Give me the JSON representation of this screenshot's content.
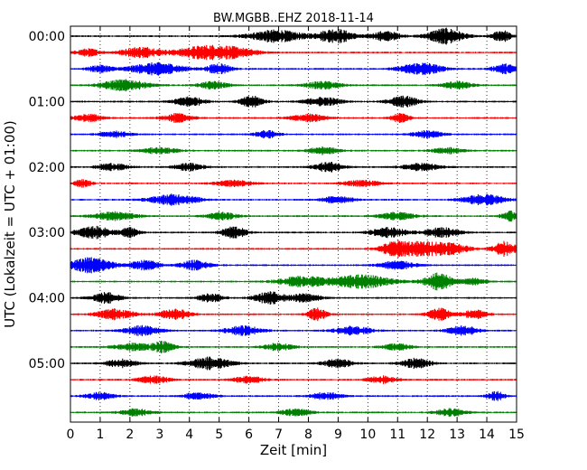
{
  "chart_data": {
    "type": "line",
    "title": "BW.MGBB..EHZ 2018-11-14",
    "xlabel": "Zeit  [min]",
    "ylabel": "UTC (Lokalzeit = UTC + 01:00)",
    "xlim": [
      0,
      15
    ],
    "x_ticks": [
      0,
      1,
      2,
      3,
      4,
      5,
      6,
      7,
      8,
      9,
      10,
      11,
      12,
      13,
      14,
      15
    ],
    "y_tick_labels": [
      "00:00",
      "01:00",
      "02:00",
      "03:00",
      "04:00",
      "05:00"
    ],
    "trace_minutes": 15,
    "grid": "vertical dotted at each minute",
    "color_cycle": [
      "#000000",
      "#ff0000",
      "#0000ff",
      "#008000"
    ],
    "series": [
      {
        "name": "00:00",
        "color": "#000000",
        "bursts": [
          [
            6.9,
            0.9,
            1.0
          ],
          [
            8.9,
            0.6,
            1.2
          ],
          [
            10.6,
            0.5,
            0.8
          ],
          [
            12.6,
            0.6,
            1.3
          ],
          [
            14.5,
            0.3,
            1.0
          ]
        ]
      },
      {
        "name": "00:15",
        "color": "#ff0000",
        "bursts": [
          [
            0.6,
            0.4,
            0.6
          ],
          [
            2.4,
            0.7,
            0.9
          ],
          [
            4.3,
            0.8,
            0.8
          ],
          [
            5.3,
            0.9,
            0.9
          ]
        ]
      },
      {
        "name": "00:30",
        "color": "#0000ff",
        "bursts": [
          [
            1.0,
            0.4,
            0.6
          ],
          [
            2.9,
            0.9,
            1.0
          ],
          [
            5.0,
            0.4,
            0.9
          ],
          [
            11.8,
            0.7,
            1.0
          ],
          [
            14.6,
            0.4,
            0.8
          ]
        ]
      },
      {
        "name": "00:45",
        "color": "#008000",
        "bursts": [
          [
            1.8,
            0.8,
            0.9
          ],
          [
            4.8,
            0.5,
            0.6
          ],
          [
            8.5,
            0.6,
            0.6
          ],
          [
            13.0,
            0.5,
            0.6
          ]
        ]
      },
      {
        "name": "01:00",
        "color": "#000000",
        "bursts": [
          [
            4.0,
            0.5,
            0.8
          ],
          [
            6.1,
            0.4,
            0.9
          ],
          [
            8.5,
            0.6,
            0.7
          ],
          [
            11.2,
            0.5,
            0.9
          ]
        ]
      },
      {
        "name": "01:15",
        "color": "#ff0000",
        "bursts": [
          [
            0.6,
            0.5,
            0.6
          ],
          [
            3.6,
            0.5,
            0.7
          ],
          [
            8.0,
            0.6,
            0.6
          ],
          [
            11.1,
            0.3,
            0.8
          ]
        ]
      },
      {
        "name": "01:30",
        "color": "#0000ff",
        "bursts": [
          [
            1.5,
            0.5,
            0.5
          ],
          [
            6.6,
            0.4,
            0.6
          ],
          [
            12.0,
            0.5,
            0.6
          ]
        ]
      },
      {
        "name": "01:45",
        "color": "#008000",
        "bursts": [
          [
            3.0,
            0.6,
            0.5
          ],
          [
            8.5,
            0.5,
            0.6
          ],
          [
            12.7,
            0.5,
            0.5
          ]
        ]
      },
      {
        "name": "02:00",
        "color": "#000000",
        "bursts": [
          [
            1.4,
            0.5,
            0.6
          ],
          [
            4.0,
            0.5,
            0.6
          ],
          [
            8.7,
            0.5,
            0.8
          ],
          [
            11.8,
            0.6,
            0.6
          ]
        ]
      },
      {
        "name": "02:15",
        "color": "#ff0000",
        "bursts": [
          [
            0.4,
            0.3,
            0.6
          ],
          [
            5.5,
            0.6,
            0.5
          ],
          [
            9.8,
            0.6,
            0.5
          ]
        ]
      },
      {
        "name": "02:30",
        "color": "#0000ff",
        "bursts": [
          [
            3.5,
            0.8,
            0.9
          ],
          [
            9.0,
            0.5,
            0.6
          ],
          [
            13.9,
            0.7,
            0.9
          ]
        ]
      },
      {
        "name": "02:45",
        "color": "#008000",
        "bursts": [
          [
            1.5,
            0.7,
            0.7
          ],
          [
            5.1,
            0.5,
            0.6
          ],
          [
            11.0,
            0.6,
            0.6
          ],
          [
            14.8,
            0.3,
            0.8
          ]
        ]
      },
      {
        "name": "03:00",
        "color": "#000000",
        "bursts": [
          [
            0.8,
            0.6,
            1.0
          ],
          [
            2.0,
            0.3,
            0.8
          ],
          [
            5.5,
            0.4,
            1.0
          ],
          [
            10.7,
            0.6,
            0.8
          ],
          [
            12.5,
            0.6,
            0.8
          ]
        ]
      },
      {
        "name": "03:15",
        "color": "#ff0000",
        "bursts": [
          [
            10.9,
            0.5,
            1.0
          ],
          [
            11.8,
            0.8,
            1.1
          ],
          [
            12.8,
            0.6,
            0.8
          ],
          [
            14.6,
            0.4,
            1.2
          ]
        ]
      },
      {
        "name": "03:30",
        "color": "#0000ff",
        "bursts": [
          [
            0.7,
            0.7,
            1.3
          ],
          [
            2.5,
            0.5,
            0.8
          ],
          [
            4.2,
            0.5,
            0.8
          ],
          [
            11.0,
            0.6,
            0.7
          ]
        ]
      },
      {
        "name": "03:45",
        "color": "#008000",
        "bursts": [
          [
            7.8,
            0.8,
            0.9
          ],
          [
            9.8,
            1.0,
            1.1
          ],
          [
            12.4,
            0.5,
            1.4
          ],
          [
            13.6,
            0.4,
            0.5
          ]
        ]
      },
      {
        "name": "04:00",
        "color": "#000000",
        "bursts": [
          [
            1.2,
            0.5,
            0.9
          ],
          [
            4.7,
            0.4,
            0.7
          ],
          [
            6.7,
            0.5,
            1.0
          ],
          [
            7.9,
            0.5,
            0.7
          ]
        ]
      },
      {
        "name": "04:15",
        "color": "#ff0000",
        "bursts": [
          [
            1.5,
            0.6,
            0.9
          ],
          [
            3.5,
            0.5,
            0.9
          ],
          [
            8.3,
            0.3,
            1.1
          ],
          [
            12.4,
            0.4,
            1.0
          ],
          [
            13.6,
            0.4,
            0.7
          ]
        ]
      },
      {
        "name": "04:30",
        "color": "#0000ff",
        "bursts": [
          [
            2.4,
            0.6,
            0.8
          ],
          [
            5.8,
            0.6,
            0.8
          ],
          [
            9.5,
            0.6,
            0.7
          ],
          [
            13.2,
            0.5,
            0.8
          ]
        ]
      },
      {
        "name": "04:45",
        "color": "#008000",
        "bursts": [
          [
            2.1,
            0.6,
            0.6
          ],
          [
            3.1,
            0.4,
            0.9
          ],
          [
            7.0,
            0.5,
            0.6
          ],
          [
            11.0,
            0.5,
            0.5
          ]
        ]
      },
      {
        "name": "05:00",
        "color": "#000000",
        "bursts": [
          [
            1.7,
            0.5,
            0.7
          ],
          [
            4.7,
            0.7,
            1.0
          ],
          [
            9.0,
            0.5,
            0.7
          ],
          [
            11.6,
            0.5,
            0.8
          ]
        ]
      },
      {
        "name": "05:15",
        "color": "#ff0000",
        "bursts": [
          [
            2.8,
            0.5,
            0.6
          ],
          [
            6.0,
            0.5,
            0.6
          ],
          [
            10.5,
            0.5,
            0.6
          ]
        ]
      },
      {
        "name": "05:30",
        "color": "#0000ff",
        "bursts": [
          [
            1.0,
            0.5,
            0.6
          ],
          [
            4.3,
            0.5,
            0.6
          ],
          [
            8.6,
            0.5,
            0.6
          ],
          [
            14.3,
            0.3,
            0.8
          ]
        ]
      },
      {
        "name": "05:45",
        "color": "#008000",
        "bursts": [
          [
            2.2,
            0.5,
            0.6
          ],
          [
            7.6,
            0.5,
            0.6
          ],
          [
            12.8,
            0.5,
            0.6
          ]
        ]
      }
    ]
  }
}
